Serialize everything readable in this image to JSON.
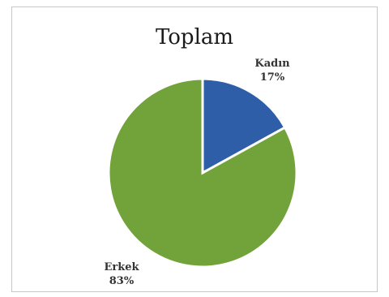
{
  "chart_data": {
    "type": "pie",
    "title": "Toplam",
    "slices": [
      {
        "label": "Kadın",
        "percent_label": "17%",
        "value": 17,
        "color": "#2e5ea8"
      },
      {
        "label": "Erkek",
        "percent_label": "83%",
        "value": 83,
        "color": "#72a23a"
      }
    ],
    "start_angle_deg": 0,
    "direction": "clockwise",
    "edge_color": "#ffffff"
  }
}
